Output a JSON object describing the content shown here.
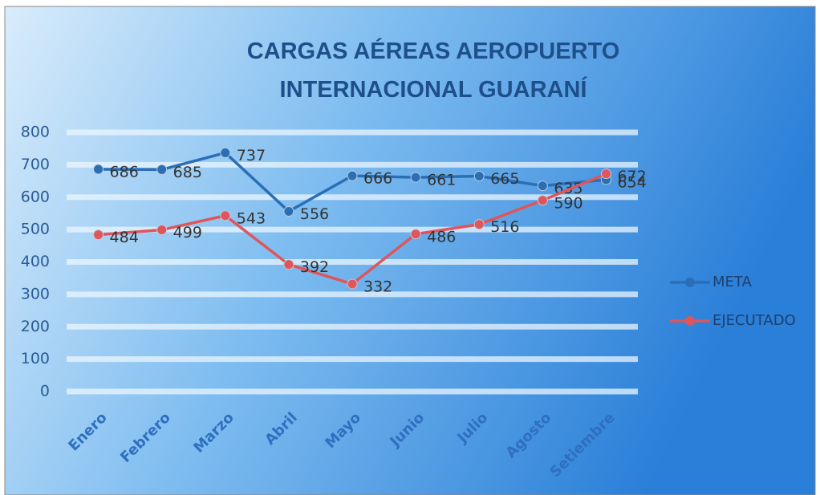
{
  "chart_data": {
    "type": "line",
    "title": "CARGAS AÉREAS AEROPUERTO INTERNACIONAL GUARANÍ",
    "categories": [
      "Enero",
      "Febrero",
      "Marzo",
      "Abril",
      "Mayo",
      "Junio",
      "Julio",
      "Agosto",
      "Setiembre"
    ],
    "series": [
      {
        "name": "META",
        "color": "#2a6fb5",
        "values": [
          686,
          685,
          737,
          556,
          666,
          661,
          665,
          635,
          654
        ]
      },
      {
        "name": "EJECUTADO",
        "color": "#e0555a",
        "values": [
          484,
          499,
          543,
          392,
          332,
          486,
          516,
          590,
          672
        ]
      }
    ],
    "ylim": [
      0,
      800
    ],
    "yticks": [
      0,
      100,
      200,
      300,
      400,
      500,
      600,
      700,
      800
    ],
    "grid": true,
    "legend": "right"
  }
}
